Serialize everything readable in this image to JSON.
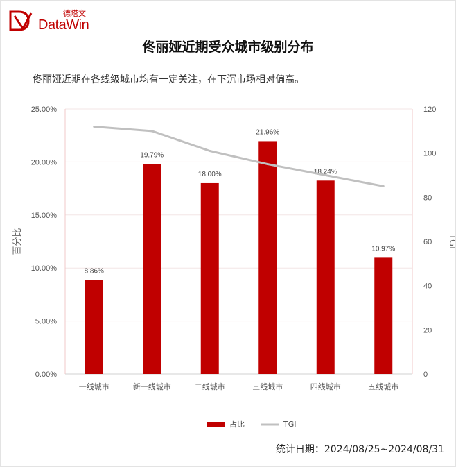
{
  "brand": {
    "cn": "德塔文",
    "en": "DataWin"
  },
  "title": "佟丽娅近期受众城市级别分布",
  "subtitle": "佟丽娅近期在各线级城市均有一定关注，在下沉市场相对偏高。",
  "footer": "统计日期：2024/08/25~2024/08/31",
  "colors": {
    "bar": "#c00000",
    "line": "#c0c0c0",
    "grid": "#f0c8c8"
  },
  "chart_data": {
    "type": "bar",
    "categories": [
      "一线城市",
      "新一线城市",
      "二线城市",
      "三线城市",
      "四线城市",
      "五线城市"
    ],
    "series": [
      {
        "name": "占比",
        "type": "bar",
        "axis": "left",
        "values": [
          8.86,
          19.79,
          18.0,
          21.96,
          18.24,
          10.97
        ],
        "labels": [
          "8.86%",
          "19.79%",
          "18.00%",
          "21.96%",
          "18.24%",
          "10.97%"
        ]
      },
      {
        "name": "TGI",
        "type": "line",
        "axis": "right",
        "values": [
          112,
          110,
          101,
          95,
          90,
          85
        ]
      }
    ],
    "ylabel": "百分比",
    "y2label": "TGI",
    "ylim": [
      0,
      25
    ],
    "y2lim": [
      0,
      120
    ],
    "yticks": [
      "0.00%",
      "5.00%",
      "10.00%",
      "15.00%",
      "20.00%",
      "25.00%"
    ],
    "y2ticks": [
      "0",
      "20",
      "40",
      "60",
      "80",
      "100",
      "120"
    ],
    "legend": "bottom"
  }
}
